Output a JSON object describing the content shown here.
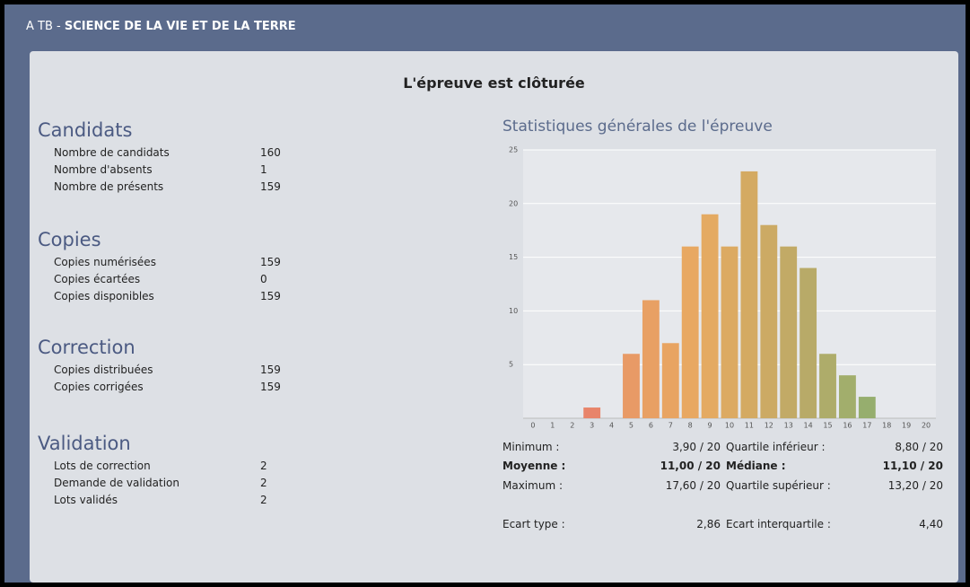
{
  "header": {
    "prefix": "A TB - ",
    "subject": "SCIENCE DE LA VIE ET DE LA TERRE"
  },
  "status": "L'épreuve est clôturée",
  "sections": [
    {
      "title": "Candidats",
      "rows": [
        [
          "Nombre de candidats",
          "160"
        ],
        [
          "Nombre d'absents",
          "1"
        ],
        [
          "Nombre de présents",
          "159"
        ]
      ]
    },
    {
      "title": "Copies",
      "rows": [
        [
          "Copies numérisées",
          "159"
        ],
        [
          "Copies écartées",
          "0"
        ],
        [
          "Copies disponibles",
          "159"
        ]
      ]
    },
    {
      "title": "Correction",
      "rows": [
        [
          "Copies distribuées",
          "159"
        ],
        [
          "Copies corrigées",
          "159"
        ]
      ]
    },
    {
      "title": "Validation",
      "rows": [
        [
          "Lots de correction",
          "2"
        ],
        [
          "Demande de validation",
          "2"
        ],
        [
          "Lots validés",
          "2"
        ]
      ]
    }
  ],
  "chart_data": {
    "type": "bar",
    "title": "Statistiques générales de l'épreuve",
    "categories": [
      "0",
      "1",
      "2",
      "3",
      "4",
      "5",
      "6",
      "7",
      "8",
      "9",
      "10",
      "11",
      "12",
      "13",
      "14",
      "15",
      "16",
      "17",
      "18",
      "19",
      "20"
    ],
    "values": [
      0,
      0,
      0,
      1,
      0,
      6,
      11,
      7,
      16,
      19,
      16,
      23,
      18,
      16,
      14,
      6,
      4,
      2,
      0,
      0,
      0
    ],
    "colors": [
      "#e8786a",
      "#e8786a",
      "#e8806a",
      "#e8846a",
      "#e8906a",
      "#e89a66",
      "#e8a064",
      "#e8a462",
      "#e8a862",
      "#e4aa62",
      "#dcaa62",
      "#d4aa62",
      "#ccaa64",
      "#c2aa66",
      "#b8aa68",
      "#aeac6a",
      "#a2ae6c",
      "#96ae6e",
      "#90ae6e",
      "#8cae6e",
      "#88ae6e"
    ],
    "ylim": [
      0,
      25
    ],
    "yticks": [
      5,
      10,
      15,
      20,
      25
    ],
    "grid": true
  },
  "stats": {
    "rows": [
      {
        "cells": [
          "Minimum :",
          "3,90 / 20",
          "Quartile inférieur :",
          "8,80 / 20"
        ],
        "bold": false
      },
      {
        "cells": [
          "Moyenne :",
          "11,00 / 20",
          "Médiane :",
          "11,10 / 20"
        ],
        "bold": true
      },
      {
        "cells": [
          "Maximum :",
          "17,60 / 20",
          "Quartile supérieur :",
          "13,20 / 20"
        ],
        "bold": false
      },
      {
        "cells": [
          "Ecart type :",
          "2,86",
          "Ecart interquartile :",
          "4,40"
        ],
        "bold": false
      }
    ]
  }
}
